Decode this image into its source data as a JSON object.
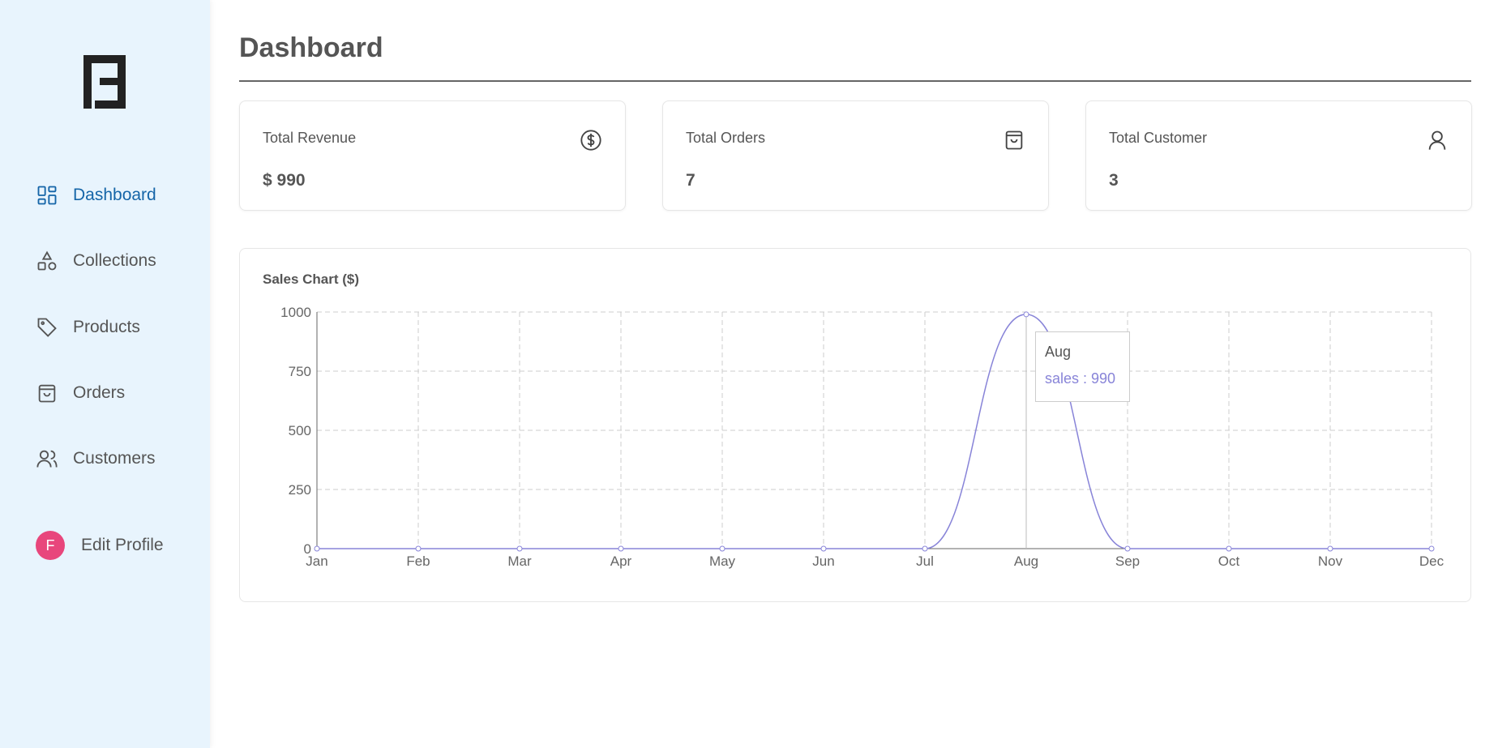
{
  "sidebar": {
    "items": [
      {
        "label": "Dashboard",
        "icon": "dashboard-grid-icon",
        "active": true
      },
      {
        "label": "Collections",
        "icon": "shapes-icon"
      },
      {
        "label": "Products",
        "icon": "tag-icon"
      },
      {
        "label": "Orders",
        "icon": "shopping-bag-icon"
      },
      {
        "label": "Customers",
        "icon": "users-icon"
      }
    ],
    "profile": {
      "initial": "F",
      "label": "Edit Profile",
      "avatar_color": "#e8467c"
    }
  },
  "header": {
    "title": "Dashboard"
  },
  "cards": [
    {
      "label": "Total Revenue",
      "value": "$ 990",
      "icon": "dollar-circle-icon"
    },
    {
      "label": "Total Orders",
      "value": "7",
      "icon": "shopping-bag-icon"
    },
    {
      "label": "Total Customer",
      "value": "3",
      "icon": "user-icon"
    }
  ],
  "chart_title": "Sales Chart ($)",
  "chart_data": {
    "type": "line",
    "title": "Sales Chart ($)",
    "categories": [
      "Jan",
      "Feb",
      "Mar",
      "Apr",
      "May",
      "Jun",
      "Jul",
      "Aug",
      "Sep",
      "Oct",
      "Nov",
      "Dec"
    ],
    "series": [
      {
        "name": "sales",
        "values": [
          0,
          0,
          0,
          0,
          0,
          0,
          0,
          990,
          0,
          0,
          0,
          0
        ],
        "color": "#8884d8"
      }
    ],
    "ylim": [
      0,
      1000
    ],
    "yticks": [
      "0",
      "250",
      "500",
      "750",
      "1000"
    ],
    "grid": true,
    "curve": "monotone"
  },
  "tooltip": {
    "label": "Aug",
    "text": "sales : 990"
  },
  "colors": {
    "accent": "#1565a8",
    "sidebar_bg": "#e8f4fd",
    "line": "#8884d8"
  }
}
